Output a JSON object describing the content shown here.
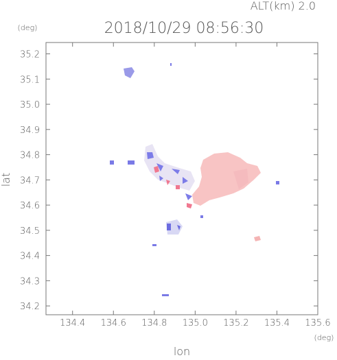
{
  "chart_data": {
    "type": "map",
    "title": "2018/10/29 08:56:30",
    "subtitle": "ALT(km) 2.0",
    "x_label": "lon",
    "y_label": "lat",
    "x_unit": "(deg)",
    "y_unit": "(deg)",
    "xlim": [
      134.27,
      135.6
    ],
    "ylim": [
      34.165,
      35.245
    ],
    "xticks": [
      134.4,
      134.6,
      134.8,
      {
        "value": 135,
        "label": "135.0"
      },
      135.2,
      135.4,
      135.6
    ],
    "yticks": [
      34.2,
      34.3,
      34.4,
      34.5,
      34.6,
      34.7,
      34.8,
      34.9,
      {
        "value": 35,
        "label": "35.0"
      },
      35.1,
      35.2
    ]
  }
}
